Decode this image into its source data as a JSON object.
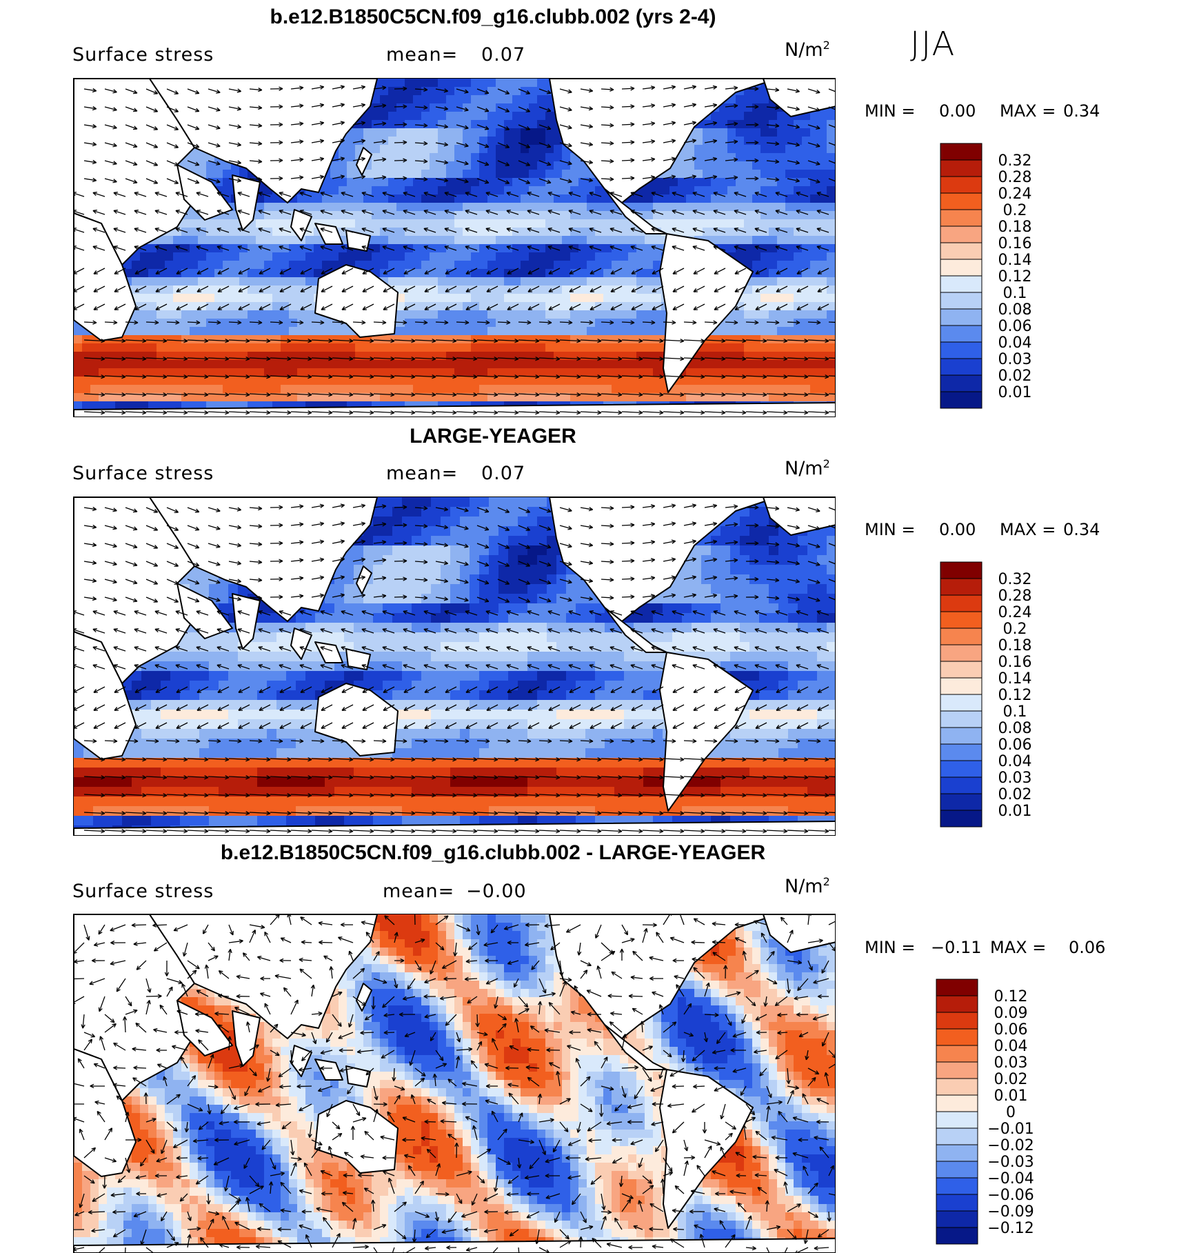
{
  "season": "JJA",
  "panels": [
    {
      "title": "b.e12.B1850C5CN.f09_g16.clubb.002 (yrs 2-4)",
      "variable": "Surface stress",
      "mean_label": "mean=",
      "mean_value": "0.07",
      "units": "N/m",
      "units_sup": "2",
      "min_label": "MIN =",
      "min_value": "0.00",
      "max_label": "MAX =",
      "max_value": "0.34",
      "colorbar_labels": [
        "0.32",
        "0.28",
        "0.24",
        "0.2",
        "0.18",
        "0.16",
        "0.14",
        "0.12",
        "0.1",
        "0.08",
        "0.06",
        "0.04",
        "0.03",
        "0.02",
        "0.01"
      ],
      "colorbar_colors": [
        "#800000",
        "#b61d0a",
        "#dc3a10",
        "#f25f1f",
        "#f6844e",
        "#f8a581",
        "#facdb3",
        "#fdebdc",
        "#d9e9fb",
        "#b8d1f6",
        "#8fb3f1",
        "#5b8aee",
        "#2f60e8",
        "#1a40d0",
        "#0e28a8",
        "#061888"
      ]
    },
    {
      "title": "LARGE-YEAGER",
      "variable": "Surface stress",
      "mean_label": "mean=",
      "mean_value": "0.07",
      "units": "N/m",
      "units_sup": "2",
      "min_label": "MIN =",
      "min_value": "0.00",
      "max_label": "MAX =",
      "max_value": "0.34",
      "colorbar_labels": [
        "0.32",
        "0.28",
        "0.24",
        "0.2",
        "0.18",
        "0.16",
        "0.14",
        "0.12",
        "0.1",
        "0.08",
        "0.06",
        "0.04",
        "0.03",
        "0.02",
        "0.01"
      ],
      "colorbar_colors": [
        "#800000",
        "#b61d0a",
        "#dc3a10",
        "#f25f1f",
        "#f6844e",
        "#f8a581",
        "#facdb3",
        "#fdebdc",
        "#d9e9fb",
        "#b8d1f6",
        "#8fb3f1",
        "#5b8aee",
        "#2f60e8",
        "#1a40d0",
        "#0e28a8",
        "#061888"
      ]
    },
    {
      "title": "b.e12.B1850C5CN.f09_g16.clubb.002 - LARGE-YEAGER",
      "variable": "Surface stress",
      "mean_label": "mean=",
      "mean_value": "−0.00",
      "units": "N/m",
      "units_sup": "2",
      "min_label": "MIN =",
      "min_value": "−0.11",
      "max_label": "MAX =",
      "max_value": "0.06",
      "colorbar_labels": [
        "0.12",
        "0.09",
        "0.06",
        "0.04",
        "0.03",
        "0.02",
        "0.01",
        "0",
        "−0.01",
        "−0.02",
        "−0.03",
        "−0.04",
        "−0.06",
        "−0.09",
        "−0.12"
      ],
      "colorbar_colors": [
        "#800000",
        "#b61d0a",
        "#dc3a10",
        "#f25f1f",
        "#f6844e",
        "#f8a581",
        "#facdb3",
        "#fdebdc",
        "#d9e9fb",
        "#b8d1f6",
        "#8fb3f1",
        "#5b8aee",
        "#2f60e8",
        "#1a40d0",
        "#0e28a8",
        "#061888"
      ]
    }
  ]
}
